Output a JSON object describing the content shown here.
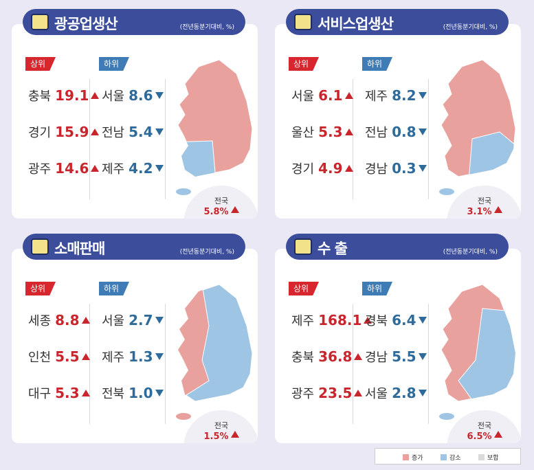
{
  "panels": [
    {
      "title": "광공업생산",
      "note": "(전년동분기대비, %)",
      "top": {
        "label": "상위",
        "items": [
          {
            "region": "충북",
            "value": "19.1"
          },
          {
            "region": "경기",
            "value": "15.9"
          },
          {
            "region": "광주",
            "value": "14.6"
          }
        ]
      },
      "bottom": {
        "label": "하위",
        "items": [
          {
            "region": "서울",
            "value": "8.6"
          },
          {
            "region": "전남",
            "value": "5.4"
          },
          {
            "region": "제주",
            "value": "4.2"
          }
        ]
      },
      "national": {
        "label": "전국",
        "value": "5.8%"
      }
    },
    {
      "title": "서비스업생산",
      "note": "(전년동분기대비, %)",
      "top": {
        "label": "상위",
        "items": [
          {
            "region": "서울",
            "value": "6.1"
          },
          {
            "region": "울산",
            "value": "5.3"
          },
          {
            "region": "경기",
            "value": "4.9"
          }
        ]
      },
      "bottom": {
        "label": "하위",
        "items": [
          {
            "region": "제주",
            "value": "8.2"
          },
          {
            "region": "전남",
            "value": "0.8"
          },
          {
            "region": "경남",
            "value": "0.3"
          }
        ]
      },
      "national": {
        "label": "전국",
        "value": "3.1%"
      }
    },
    {
      "title": "소매판매",
      "note": "(전년동분기대비, %)",
      "top": {
        "label": "상위",
        "items": [
          {
            "region": "세종",
            "value": "8.8"
          },
          {
            "region": "인천",
            "value": "5.5"
          },
          {
            "region": "대구",
            "value": "5.3"
          }
        ]
      },
      "bottom": {
        "label": "하위",
        "items": [
          {
            "region": "서울",
            "value": "2.7"
          },
          {
            "region": "제주",
            "value": "1.3"
          },
          {
            "region": "전북",
            "value": "1.0"
          }
        ]
      },
      "national": {
        "label": "전국",
        "value": "1.5%"
      }
    },
    {
      "title": "수 출",
      "note": "(전년동분기대비, %)",
      "top": {
        "label": "상위",
        "items": [
          {
            "region": "제주",
            "value": "168.1"
          },
          {
            "region": "충북",
            "value": "36.8"
          },
          {
            "region": "광주",
            "value": "23.5"
          }
        ]
      },
      "bottom": {
        "label": "하위",
        "items": [
          {
            "region": "경북",
            "value": "6.4"
          },
          {
            "region": "경남",
            "value": "5.5"
          },
          {
            "region": "서울",
            "value": "2.8"
          }
        ]
      },
      "national": {
        "label": "전국",
        "value": "6.5%"
      }
    }
  ],
  "legend": [
    {
      "label": "증가",
      "color": "#e8a19d"
    },
    {
      "label": "감소",
      "color": "#9fc5e5"
    },
    {
      "label": "보합",
      "color": "#d9d9d9"
    }
  ]
}
